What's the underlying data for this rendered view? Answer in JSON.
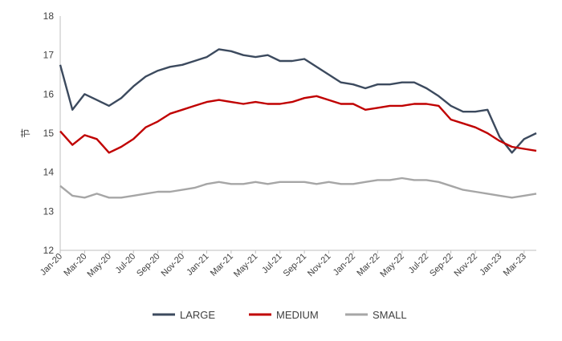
{
  "chart_data": {
    "type": "line",
    "ylabel": "节",
    "ylim": [
      12,
      18
    ],
    "yticks": [
      12,
      13,
      14,
      15,
      16,
      17,
      18
    ],
    "xlim": [
      "2020-01",
      "2023-04"
    ],
    "xticks": [
      "Jan-20",
      "Mar-20",
      "May-20",
      "Jul-20",
      "Sep-20",
      "Nov-20",
      "Jan-21",
      "Mar-21",
      "May-21",
      "Jul-21",
      "Sep-21",
      "Nov-21",
      "Jan-22",
      "Mar-22",
      "May-22",
      "Jul-22",
      "Sep-22",
      "Nov-22",
      "Jan-23",
      "Mar-23"
    ],
    "legend_position": "bottom",
    "grid": false,
    "x": [
      "2020-01",
      "2020-02",
      "2020-03",
      "2020-04",
      "2020-05",
      "2020-06",
      "2020-07",
      "2020-08",
      "2020-09",
      "2020-10",
      "2020-11",
      "2020-12",
      "2021-01",
      "2021-02",
      "2021-03",
      "2021-04",
      "2021-05",
      "2021-06",
      "2021-07",
      "2021-08",
      "2021-09",
      "2021-10",
      "2021-11",
      "2021-12",
      "2022-01",
      "2022-02",
      "2022-03",
      "2022-04",
      "2022-05",
      "2022-06",
      "2022-07",
      "2022-08",
      "2022-09",
      "2022-10",
      "2022-11",
      "2022-12",
      "2023-01",
      "2023-02",
      "2023-03",
      "2023-04"
    ],
    "series": [
      {
        "name": "LARGE",
        "color": "#3c4a5e",
        "values": [
          16.75,
          15.6,
          16.0,
          15.85,
          15.7,
          15.9,
          16.2,
          16.45,
          16.6,
          16.7,
          16.75,
          16.85,
          16.95,
          17.15,
          17.1,
          17.0,
          16.95,
          17.0,
          16.85,
          16.85,
          16.9,
          16.7,
          16.5,
          16.3,
          16.25,
          16.15,
          16.25,
          16.25,
          16.3,
          16.3,
          16.15,
          15.95,
          15.7,
          15.55,
          15.55,
          15.6,
          14.9,
          14.5,
          14.85,
          15.0
        ]
      },
      {
        "name": "MEDIUM",
        "color": "#c00000",
        "values": [
          15.05,
          14.7,
          14.95,
          14.85,
          14.5,
          14.65,
          14.85,
          15.15,
          15.3,
          15.5,
          15.6,
          15.7,
          15.8,
          15.85,
          15.8,
          15.75,
          15.8,
          15.75,
          15.75,
          15.8,
          15.9,
          15.95,
          15.85,
          15.75,
          15.75,
          15.6,
          15.65,
          15.7,
          15.7,
          15.75,
          15.75,
          15.7,
          15.35,
          15.25,
          15.15,
          15.0,
          14.8,
          14.65,
          14.6,
          14.55
        ]
      },
      {
        "name": "SMALL",
        "color": "#a6a6a6",
        "values": [
          13.65,
          13.4,
          13.35,
          13.45,
          13.35,
          13.35,
          13.4,
          13.45,
          13.5,
          13.5,
          13.55,
          13.6,
          13.7,
          13.75,
          13.7,
          13.7,
          13.75,
          13.7,
          13.75,
          13.75,
          13.75,
          13.7,
          13.75,
          13.7,
          13.7,
          13.75,
          13.8,
          13.8,
          13.85,
          13.8,
          13.8,
          13.75,
          13.65,
          13.55,
          13.5,
          13.45,
          13.4,
          13.35,
          13.4,
          13.45
        ]
      }
    ]
  }
}
